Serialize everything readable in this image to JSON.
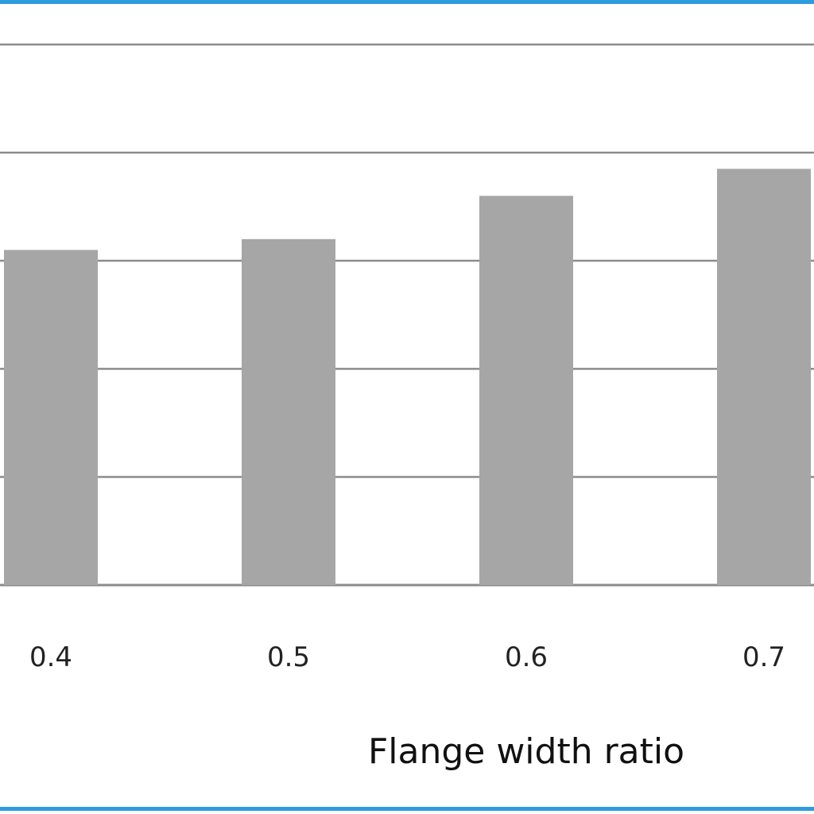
{
  "chart_data": {
    "type": "bar",
    "title": "",
    "xlabel": "Flange width ratio",
    "ylabel": "",
    "categories": [
      "0.4",
      "0.5",
      "0.6",
      "0.7"
    ],
    "values": [
      3.1,
      3.2,
      3.6,
      3.85
    ],
    "ylim": [
      0,
      5
    ],
    "grid": true,
    "bar_color": "#a6a6a6",
    "grid_color": "#8c8c8c",
    "border_color": "#2e9be0"
  }
}
